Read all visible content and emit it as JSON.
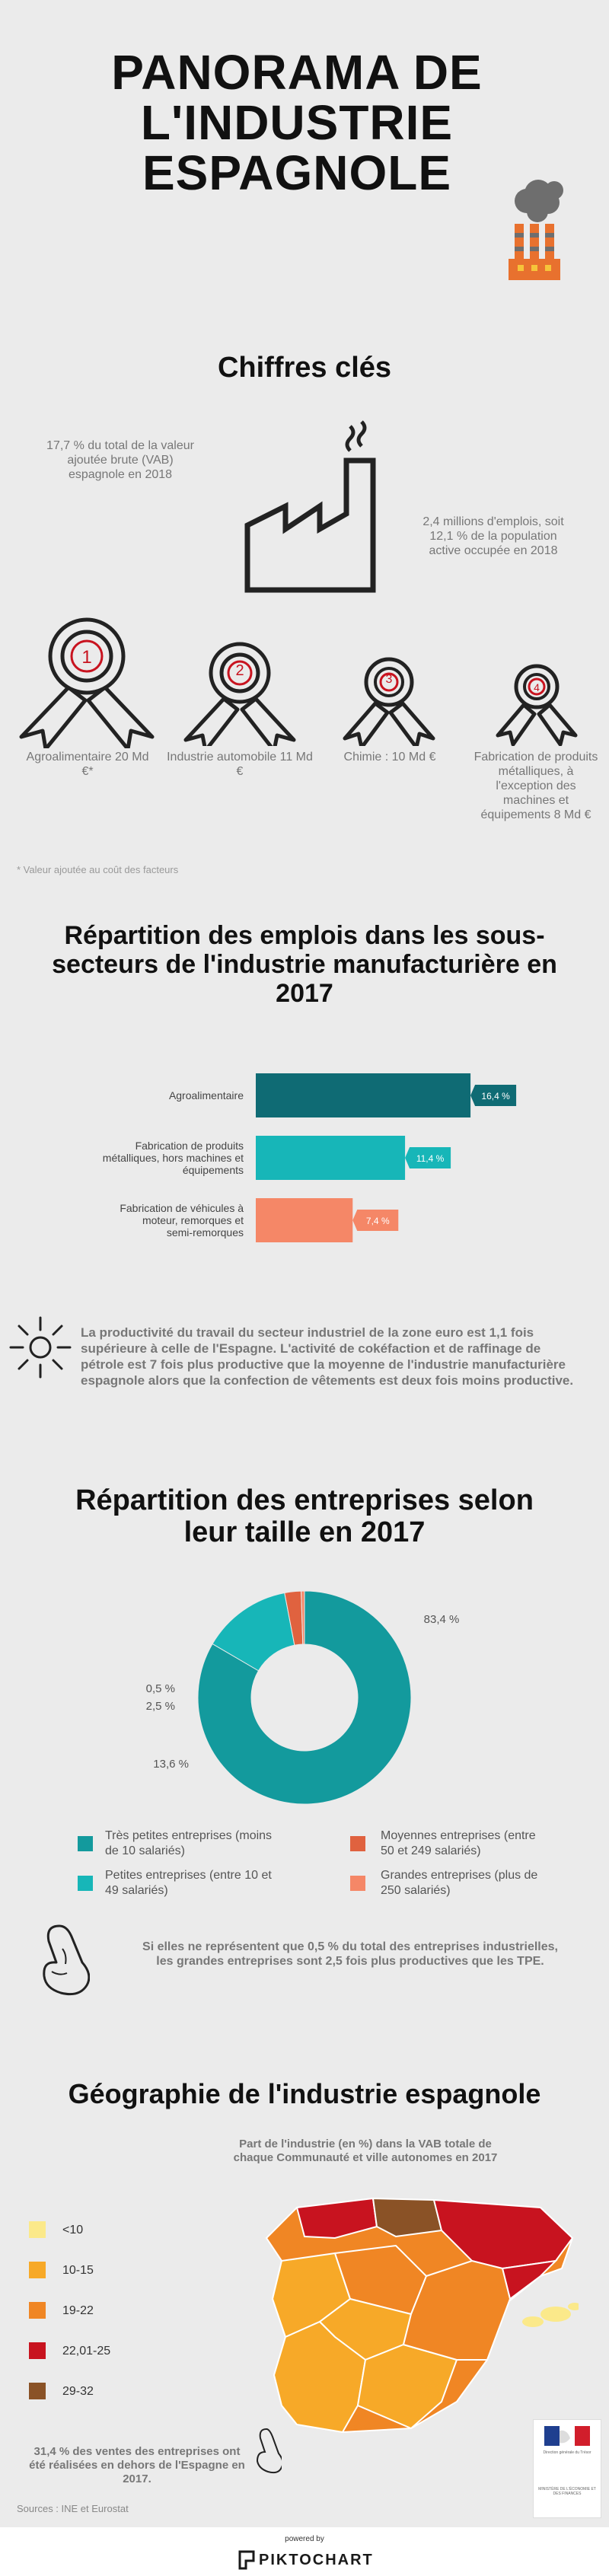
{
  "header": {
    "title": "PANORAMA DE L'INDUSTRIE ESPAGNOLE"
  },
  "key_figures": {
    "heading": "Chiffres clés",
    "vab_share": "17,7 % du total de la valeur ajoutée brute (VAB) espagnole en 2018",
    "employment": "2,4 millions d'emplois, soit 12,1 % de la population active occupée en 2018",
    "ranks": [
      {
        "rank": "1",
        "label": "Agroalimentaire 20 Md €*"
      },
      {
        "rank": "2",
        "label": "Industrie automobile 11 Md €"
      },
      {
        "rank": "3",
        "label": "Chimie : 10 Md €"
      },
      {
        "rank": "4",
        "label": "Fabrication de produits métalliques, à l'exception des machines et équipements 8 Md €"
      }
    ],
    "footnote": "* Valeur ajoutée au coût des facteurs"
  },
  "employment_section": {
    "heading": "Répartition des emplois dans les sous-secteurs de l'industrie manufacturière en 2017",
    "note": "La productivité du travail du secteur industriel de la zone euro est 1,1 fois supérieure à celle de l'Espagne. L'activité de cokéfaction et de raffinage de pétrole est 7 fois plus productive que la moyenne de l'industrie manufacturière espagnole alors que la confection de vêtements est deux fois moins productive."
  },
  "chart_data": [
    {
      "type": "bar",
      "orientation": "horizontal",
      "categories": [
        "Agroalimentaire",
        "Fabrication de produits métalliques, hors machines et équipements",
        "Fabrication de véhicules à moteur, remorques et semi-remorques"
      ],
      "values": [
        16.4,
        11.4,
        7.4
      ],
      "data_labels": [
        "16,4 %",
        "11,4 %",
        "7,4 %"
      ],
      "colors": [
        "#0f6b74",
        "#17b6b8",
        "#f58767"
      ]
    },
    {
      "type": "pie",
      "style": "donut",
      "title": "Répartition des entreprises selon leur taille en 2017",
      "categories": [
        "Très petites entreprises (moins de 10 salariés)",
        "Petites entreprises (entre 10 et 49 salariés)",
        "Moyennes entreprises (entre 50 et 249 salariés)",
        "Grandes entreprises (plus de 250 salariés)"
      ],
      "values": [
        83.4,
        13.6,
        2.5,
        0.5
      ],
      "data_labels": [
        "83,4 %",
        "13,6 %",
        "2,5 %",
        "0,5 %"
      ],
      "colors": [
        "#139a9d",
        "#17b6b8",
        "#e0623f",
        "#f58767"
      ],
      "legend_position": "bottom"
    }
  ],
  "companies_section": {
    "note": "Si elles ne représentent que 0,5 % du total des entreprises industrielles, les grandes entreprises sont 2,5 fois plus productives que les TPE."
  },
  "geography": {
    "heading": "Géographie de l'industrie espagnole",
    "map_caption": "Part de l'industrie (en %) dans la VAB totale de chaque Communauté et ville autonomes en 2017",
    "legend": [
      {
        "label": "<10",
        "color": "#fbe98a"
      },
      {
        "label": "10-15",
        "color": "#f7a928"
      },
      {
        "label": "19-22",
        "color": "#f08624"
      },
      {
        "label": "22,01-25",
        "color": "#c8131f"
      },
      {
        "label": "29-32",
        "color": "#8a5226"
      }
    ],
    "sales_note": "31,4 % des ventes des entreprises ont été réalisées en dehors de l'Espagne en 2017.",
    "sources": "Sources : INE et Eurostat",
    "logo_text_1": "Direction générale du Trésor",
    "logo_text_2": "MINISTÈRE DE L'ÉCONOMIE ET DES FINANCES"
  },
  "footer": {
    "powered_by": "powered by",
    "brand": "PIKTOCHART"
  }
}
